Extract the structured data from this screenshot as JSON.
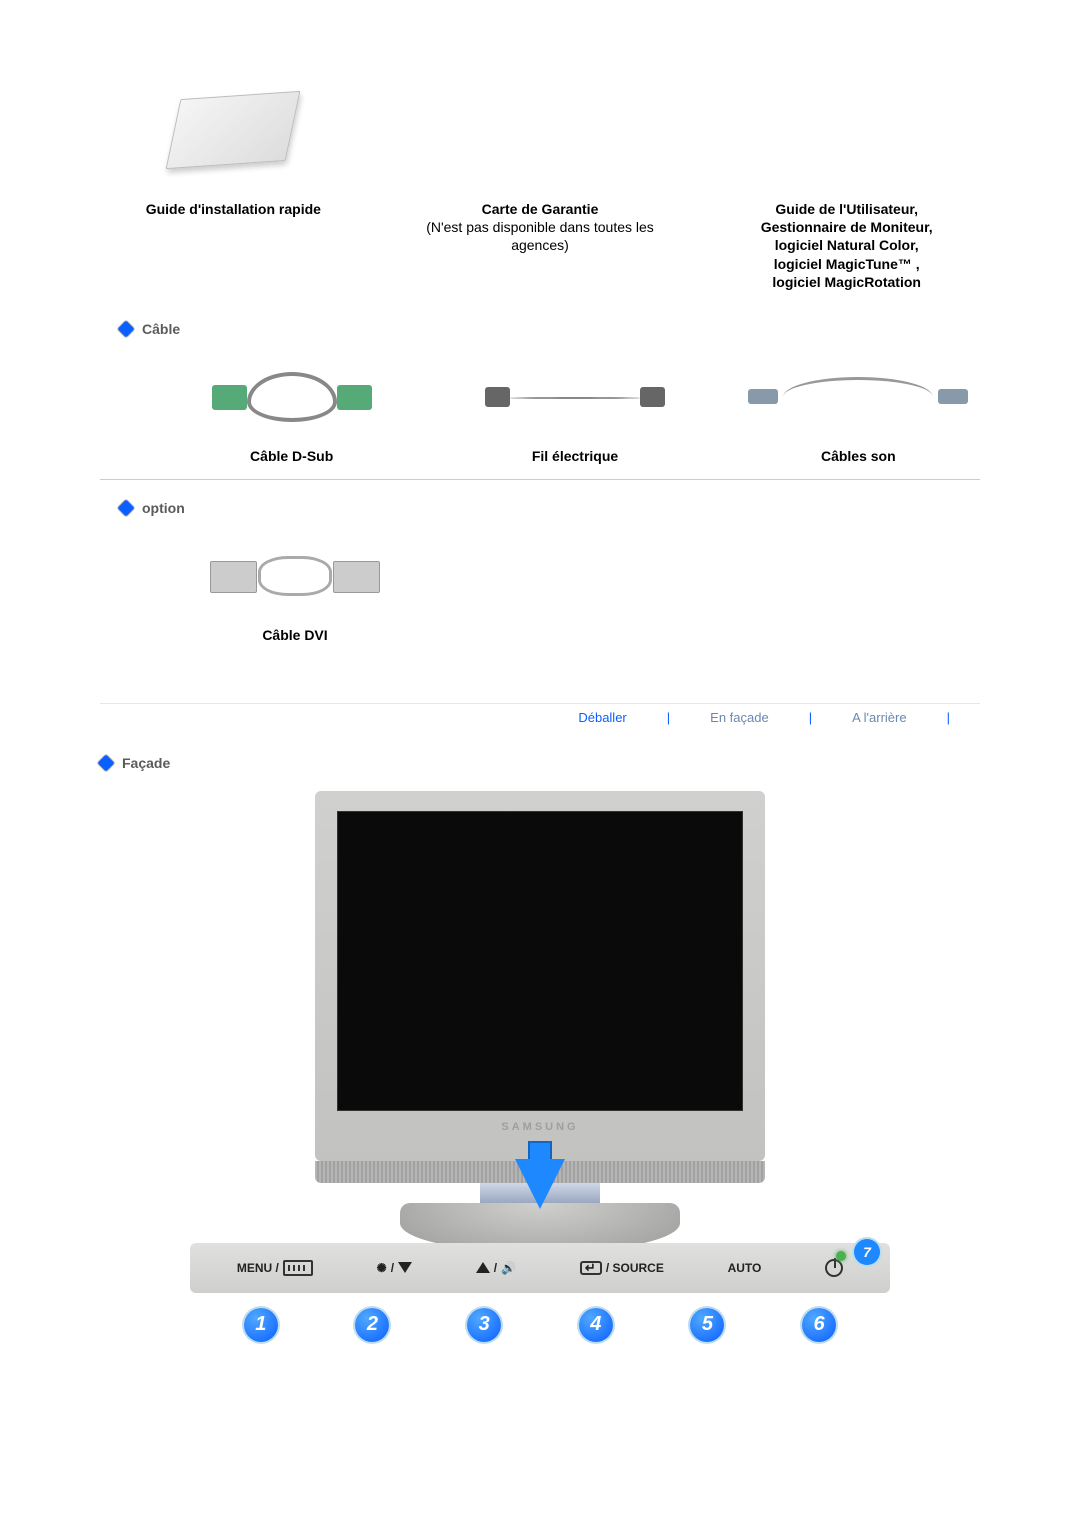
{
  "top_items": {
    "quick_guide_label": "Guide d'installation rapide",
    "warranty_title": "Carte de Garantie",
    "warranty_sub": "(N'est pas disponible dans toutes les agences)",
    "user_guide_lines": [
      "Guide de l'Utilisateur,",
      "Gestionnaire de Moniteur,",
      "logiciel Natural Color,",
      "logiciel MagicTune™ ,",
      "logiciel MagicRotation"
    ]
  },
  "sections": {
    "cable": "Câble",
    "option": "option",
    "facade": "Façade"
  },
  "cables": {
    "dsub": "Câble D-Sub",
    "power": "Fil électrique",
    "sound": "Câbles son",
    "dvi": "Câble DVI"
  },
  "nav": {
    "deballer": "Déballer",
    "facade": "En façade",
    "arriere": "A l'arrière"
  },
  "monitor": {
    "brand": "SAMSUNG"
  },
  "controls": {
    "menu": "MENU /",
    "source": "/ SOURCE",
    "auto": "AUTO",
    "badge7": "7",
    "numbers": [
      "1",
      "2",
      "3",
      "4",
      "5",
      "6"
    ]
  },
  "colors": {
    "accent_blue": "#1e88ff",
    "badge_blue": "#0b5fff",
    "led_green": "#4caf50",
    "bezel": "#d0d0cf",
    "screen": "#0a0a0a"
  }
}
